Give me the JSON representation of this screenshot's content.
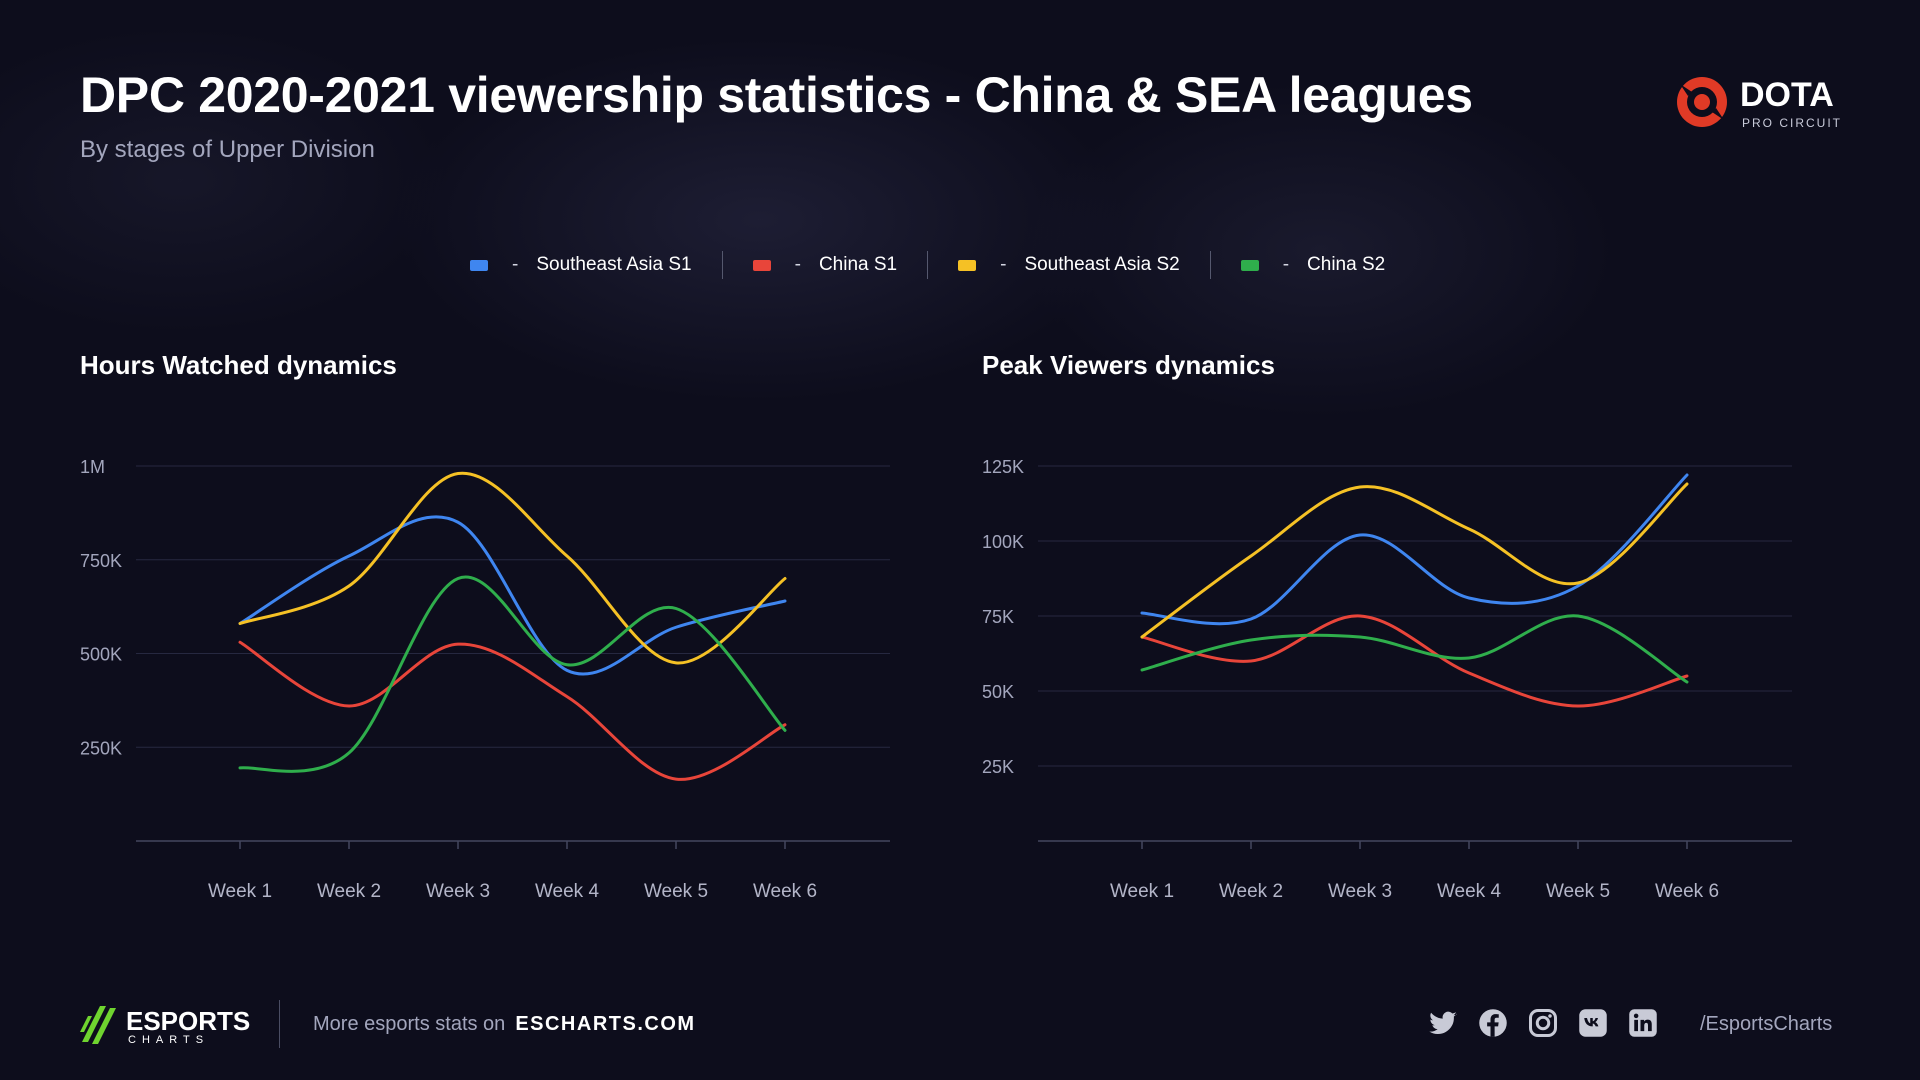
{
  "header": {
    "title": "DPC 2020-2021 viewership statistics - China & SEA leagues",
    "subtitle": "By stages of Upper Division"
  },
  "brand": {
    "name": "DOTA",
    "sub": "PRO CIRCUIT",
    "icon": "dota-icon"
  },
  "legend": [
    {
      "label": "Southeast Asia S1",
      "dash": "-",
      "color": "#3f86f0"
    },
    {
      "label": "China S1",
      "dash": "-",
      "color": "#e8453a"
    },
    {
      "label": "Southeast Asia S2",
      "dash": "-",
      "color": "#f5c125"
    },
    {
      "label": "China S2",
      "dash": "-",
      "color": "#2fae4c"
    }
  ],
  "chart_data": [
    {
      "type": "line",
      "title": "Hours Watched dynamics",
      "categories": [
        "Week 1",
        "Week 2",
        "Week 3",
        "Week 4",
        "Week 5",
        "Week 6"
      ],
      "ylim": [
        0,
        1000000
      ],
      "yticks": [
        {
          "value": 250000,
          "label": "250K"
        },
        {
          "value": 500000,
          "label": "500K"
        },
        {
          "value": 750000,
          "label": "750K"
        },
        {
          "value": 1000000,
          "label": "1M"
        }
      ],
      "grid": true,
      "series": [
        {
          "name": "Southeast Asia S1",
          "color": "#3f86f0",
          "values": [
            580000,
            760000,
            850000,
            455000,
            570000,
            640000
          ]
        },
        {
          "name": "China S1",
          "color": "#e8453a",
          "values": [
            530000,
            360000,
            525000,
            385000,
            165000,
            310000
          ]
        },
        {
          "name": "Southeast Asia S2",
          "color": "#f5c125",
          "values": [
            580000,
            680000,
            980000,
            760000,
            475000,
            700000
          ]
        },
        {
          "name": "China S2",
          "color": "#2fae4c",
          "values": [
            195000,
            235000,
            700000,
            470000,
            620000,
            295000
          ]
        }
      ]
    },
    {
      "type": "line",
      "title": "Peak Viewers dynamics",
      "categories": [
        "Week 1",
        "Week 2",
        "Week 3",
        "Week 4",
        "Week 5",
        "Week 6"
      ],
      "ylim": [
        0,
        125000
      ],
      "yticks": [
        {
          "value": 25000,
          "label": "25K"
        },
        {
          "value": 50000,
          "label": "50K"
        },
        {
          "value": 75000,
          "label": "75K"
        },
        {
          "value": 100000,
          "label": "100K"
        },
        {
          "value": 125000,
          "label": "125K"
        }
      ],
      "grid": true,
      "series": [
        {
          "name": "Southeast Asia S1",
          "color": "#3f86f0",
          "values": [
            76000,
            74000,
            102000,
            81000,
            85000,
            122000
          ]
        },
        {
          "name": "China S1",
          "color": "#e8453a",
          "values": [
            68000,
            60000,
            75000,
            56000,
            45000,
            55000
          ]
        },
        {
          "name": "Southeast Asia S2",
          "color": "#f5c125",
          "values": [
            68000,
            95000,
            118000,
            104000,
            86000,
            119000
          ]
        },
        {
          "name": "China S2",
          "color": "#2fae4c",
          "values": [
            57000,
            67000,
            68000,
            61000,
            75000,
            53000
          ]
        }
      ]
    }
  ],
  "footer": {
    "brand_name": "ESPORTS",
    "brand_sub": "CHARTS",
    "text": "More esports stats on",
    "site": "ESCHARTS.COM",
    "socials": [
      "twitter-icon",
      "facebook-icon",
      "instagram-icon",
      "vk-icon",
      "linkedin-icon"
    ],
    "handle": "/EsportsCharts"
  }
}
